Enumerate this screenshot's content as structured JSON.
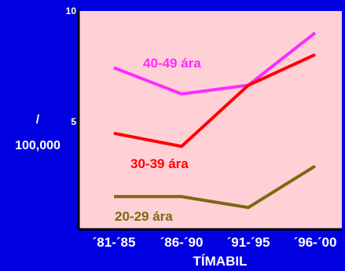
{
  "chart_data": {
    "type": "line",
    "categories": [
      "´81-´85",
      "´86-´90",
      "´91-´95",
      "´96-´00"
    ],
    "xlabel": "TÍMABIL",
    "ylabel_lines": [
      "/",
      "100,000"
    ],
    "ylim": [
      0,
      10
    ],
    "yticks": [
      {
        "value": 5,
        "label": "5"
      },
      {
        "value": 10,
        "label": "10"
      }
    ],
    "background": "#0000e0",
    "plot_background": "#ffd0d6",
    "series": [
      {
        "name": "40-49 ára",
        "values": [
          7.4,
          6.2,
          6.6,
          9.0
        ],
        "color": "#ff2aff"
      },
      {
        "name": "30-39 ára",
        "values": [
          4.4,
          3.8,
          6.6,
          8.0
        ],
        "color": "#ff0000"
      },
      {
        "name": "20-29 ára",
        "values": [
          1.5,
          1.5,
          1.0,
          2.9
        ],
        "color": "#7a6a10"
      }
    ]
  }
}
